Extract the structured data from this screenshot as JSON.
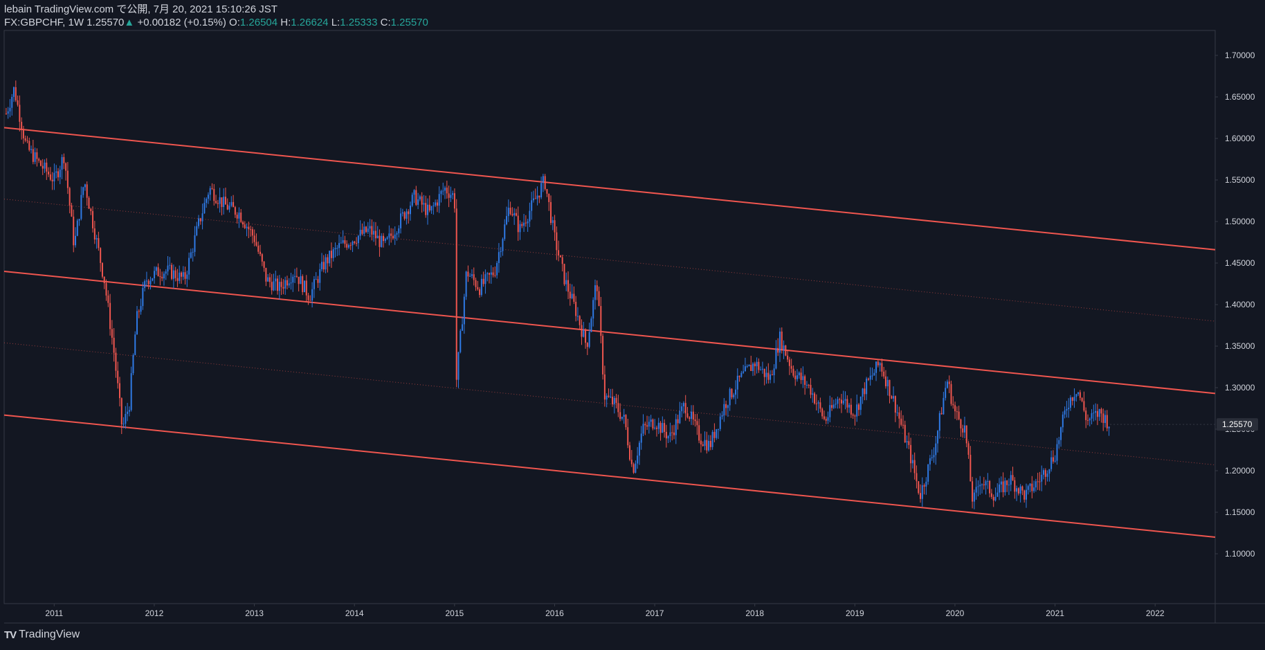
{
  "header": {
    "publish_line": "lebain TradingView.com で公開, 7月 20, 2021 15:10:26 JST",
    "symbol": "FX:GBPCHF, 1W 1.25570",
    "change_arrow": "▲",
    "change": "+0.00182 (+0.15%)",
    "o_label": "O:",
    "o_value": "1.26504",
    "h_label": "H:",
    "h_value": "1.26624",
    "l_label": "L:",
    "l_value": "1.25333",
    "c_label": "C:",
    "c_value": "1.25570"
  },
  "footer": {
    "brand": "TradingView",
    "logo_icon": "tradingview-logo-icon"
  },
  "colors": {
    "background": "#131722",
    "up": "#2f7ae5",
    "down": "#f0564f",
    "channel": "#f0564f",
    "text": "#d1d4dc",
    "grid": "#363a45"
  },
  "chart_data": {
    "type": "candlestick",
    "symbol": "FX:GBPCHF",
    "interval": "1W",
    "last_price": "1.25570",
    "x_tick_labels": [
      "2011",
      "2012",
      "2013",
      "2014",
      "2015",
      "2016",
      "2017",
      "2018",
      "2019",
      "2020",
      "2021",
      "2022"
    ],
    "y_tick_labels": [
      "1.70000",
      "1.65000",
      "1.60000",
      "1.55000",
      "1.50000",
      "1.45000",
      "1.40000",
      "1.35000",
      "1.30000",
      "1.25000",
      "1.20000",
      "1.15000",
      "1.10000"
    ],
    "xlim": [
      2010.5,
      2022.6
    ],
    "ylim": [
      1.04,
      1.73
    ],
    "grid": false,
    "price_path": [
      [
        2010.52,
        1.63
      ],
      [
        2010.6,
        1.66
      ],
      [
        2010.72,
        1.59
      ],
      [
        2010.85,
        1.57
      ],
      [
        2011.0,
        1.55
      ],
      [
        2011.1,
        1.58
      ],
      [
        2011.2,
        1.47
      ],
      [
        2011.3,
        1.55
      ],
      [
        2011.4,
        1.49
      ],
      [
        2011.5,
        1.43
      ],
      [
        2011.6,
        1.34
      ],
      [
        2011.68,
        1.25
      ],
      [
        2011.75,
        1.28
      ],
      [
        2011.82,
        1.38
      ],
      [
        2011.92,
        1.43
      ],
      [
        2012.05,
        1.44
      ],
      [
        2012.15,
        1.44
      ],
      [
        2012.3,
        1.43
      ],
      [
        2012.45,
        1.5
      ],
      [
        2012.55,
        1.54
      ],
      [
        2012.7,
        1.52
      ],
      [
        2012.85,
        1.51
      ],
      [
        2013.0,
        1.48
      ],
      [
        2013.12,
        1.43
      ],
      [
        2013.25,
        1.42
      ],
      [
        2013.4,
        1.44
      ],
      [
        2013.55,
        1.41
      ],
      [
        2013.7,
        1.45
      ],
      [
        2013.85,
        1.47
      ],
      [
        2014.0,
        1.48
      ],
      [
        2014.15,
        1.49
      ],
      [
        2014.3,
        1.47
      ],
      [
        2014.45,
        1.5
      ],
      [
        2014.6,
        1.53
      ],
      [
        2014.75,
        1.51
      ],
      [
        2014.9,
        1.54
      ],
      [
        2015.0,
        1.53
      ],
      [
        2015.02,
        1.31
      ],
      [
        2015.12,
        1.44
      ],
      [
        2015.25,
        1.42
      ],
      [
        2015.4,
        1.44
      ],
      [
        2015.55,
        1.52
      ],
      [
        2015.65,
        1.49
      ],
      [
        2015.78,
        1.52
      ],
      [
        2015.9,
        1.55
      ],
      [
        2016.0,
        1.48
      ],
      [
        2016.1,
        1.43
      ],
      [
        2016.22,
        1.39
      ],
      [
        2016.32,
        1.35
      ],
      [
        2016.42,
        1.43
      ],
      [
        2016.5,
        1.29
      ],
      [
        2016.6,
        1.28
      ],
      [
        2016.7,
        1.26
      ],
      [
        2016.78,
        1.2
      ],
      [
        2016.88,
        1.25
      ],
      [
        2017.0,
        1.26
      ],
      [
        2017.15,
        1.24
      ],
      [
        2017.3,
        1.28
      ],
      [
        2017.45,
        1.24
      ],
      [
        2017.55,
        1.23
      ],
      [
        2017.7,
        1.28
      ],
      [
        2017.85,
        1.31
      ],
      [
        2018.0,
        1.33
      ],
      [
        2018.15,
        1.31
      ],
      [
        2018.25,
        1.36
      ],
      [
        2018.38,
        1.32
      ],
      [
        2018.55,
        1.3
      ],
      [
        2018.7,
        1.26
      ],
      [
        2018.85,
        1.29
      ],
      [
        2019.0,
        1.27
      ],
      [
        2019.1,
        1.3
      ],
      [
        2019.25,
        1.33
      ],
      [
        2019.4,
        1.28
      ],
      [
        2019.55,
        1.22
      ],
      [
        2019.65,
        1.17
      ],
      [
        2019.8,
        1.23
      ],
      [
        2019.92,
        1.31
      ],
      [
        2020.0,
        1.27
      ],
      [
        2020.1,
        1.25
      ],
      [
        2020.18,
        1.16
      ],
      [
        2020.25,
        1.19
      ],
      [
        2020.4,
        1.17
      ],
      [
        2020.55,
        1.19
      ],
      [
        2020.7,
        1.17
      ],
      [
        2020.85,
        1.19
      ],
      [
        2021.0,
        1.22
      ],
      [
        2021.12,
        1.28
      ],
      [
        2021.22,
        1.3
      ],
      [
        2021.32,
        1.26
      ],
      [
        2021.45,
        1.27
      ],
      [
        2021.55,
        1.2557
      ]
    ],
    "channel_lines": [
      {
        "name": "upper",
        "points": [
          [
            2010.5,
            1.613
          ],
          [
            2022.6,
            1.466
          ]
        ]
      },
      {
        "name": "middle",
        "points": [
          [
            2010.5,
            1.44
          ],
          [
            2022.6,
            1.293
          ]
        ]
      },
      {
        "name": "lower",
        "points": [
          [
            2010.5,
            1.267
          ],
          [
            2022.6,
            1.12
          ]
        ]
      },
      {
        "name": "mid-upper",
        "dotted": true,
        "points": [
          [
            2010.5,
            1.527
          ],
          [
            2022.6,
            1.38
          ]
        ]
      },
      {
        "name": "mid-lower",
        "dotted": true,
        "points": [
          [
            2010.5,
            1.354
          ],
          [
            2022.6,
            1.207
          ]
        ]
      }
    ]
  }
}
